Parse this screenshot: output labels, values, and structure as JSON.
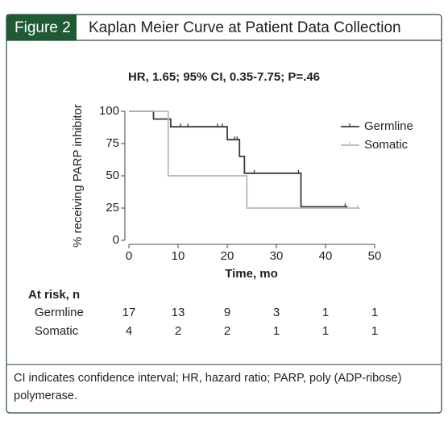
{
  "chart_data": {
    "type": "step",
    "figure_label": "Figure 2",
    "title": "Kaplan Meier Curve at Patient Data Collection",
    "subtitle": "HR, 1.65; 95% CI, 0.35-7.75; P=.46",
    "xlabel": "Time, mo",
    "ylabel": "% receiving PARP inhibitor",
    "xlim": [
      0,
      50
    ],
    "xticks": [
      0,
      10,
      20,
      30,
      40,
      50
    ],
    "ylim": [
      0,
      100
    ],
    "yticks": [
      0,
      25,
      50,
      75,
      100
    ],
    "legend": "upper right",
    "series": [
      {
        "name": "Germline",
        "color": "#3a3a3a",
        "x": [
          0,
          5,
          5,
          8.5,
          8.5,
          20,
          20,
          22.5,
          22.5,
          23.5,
          23.5,
          35,
          35,
          44.5
        ],
        "y": [
          100,
          100,
          94,
          94,
          88,
          88,
          78,
          78,
          65,
          65,
          52,
          52,
          26,
          26
        ],
        "censored": {
          "x": [
            10.5,
            12,
            18,
            19,
            21.5,
            22,
            25.5,
            34.5,
            44
          ],
          "y": [
            88,
            88,
            88,
            88,
            78,
            78,
            52,
            52,
            26
          ]
        }
      },
      {
        "name": "Somatic",
        "color": "#b8b8b8",
        "x": [
          0,
          8,
          8,
          24,
          24,
          47
        ],
        "y": [
          100,
          100,
          50,
          50,
          25,
          25
        ],
        "censored": {
          "x": [
            46.5
          ],
          "y": [
            25
          ]
        }
      }
    ],
    "risk_table": {
      "title": "At risk, n",
      "rows": [
        {
          "name": "Germline",
          "values": [
            17,
            13,
            9,
            3,
            1,
            1
          ]
        },
        {
          "name": "Somatic",
          "values": [
            4,
            2,
            2,
            1,
            1,
            1
          ]
        }
      ]
    },
    "footnote": "CI indicates confidence interval; HR, hazard ratio; PARP, poly (ADP-ribose) polymerase."
  }
}
